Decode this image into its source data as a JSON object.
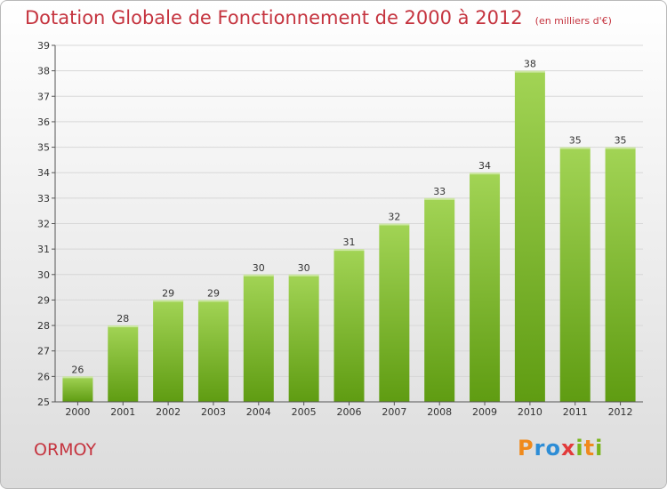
{
  "title": "Dotation Globale de Fonctionnement de 2000 à 2012",
  "unit": "(en milliers d'€)",
  "commune": "ORMOY",
  "logo": {
    "text": "Proxiti",
    "letters": [
      {
        "ch": "P",
        "color": "#f08a1c"
      },
      {
        "ch": "r",
        "color": "#2d8dd6"
      },
      {
        "ch": "o",
        "color": "#2d8dd6"
      },
      {
        "ch": "x",
        "color": "#e23a3a"
      },
      {
        "ch": "i",
        "color": "#7ab51d"
      },
      {
        "ch": "t",
        "color": "#f08a1c"
      },
      {
        "ch": "i",
        "color": "#7ab51d"
      }
    ]
  },
  "colors": {
    "title": "#c5343f",
    "bar_light": "#a2d455",
    "bar_dark": "#5f9c12",
    "grid": "#d7d7d7",
    "axis_text": "#333333"
  },
  "chart_data": {
    "type": "bar",
    "categories": [
      "2000",
      "2001",
      "2002",
      "2003",
      "2004",
      "2005",
      "2006",
      "2007",
      "2008",
      "2009",
      "2010",
      "2011",
      "2012"
    ],
    "values": [
      26,
      28,
      29,
      29,
      30,
      30,
      31,
      32,
      33,
      34,
      38,
      35,
      35
    ],
    "ylim": [
      25,
      39
    ],
    "yticks": [
      25,
      26,
      27,
      28,
      29,
      30,
      31,
      32,
      33,
      34,
      35,
      36,
      37,
      38,
      39
    ],
    "grid": true,
    "data_labels": true
  }
}
